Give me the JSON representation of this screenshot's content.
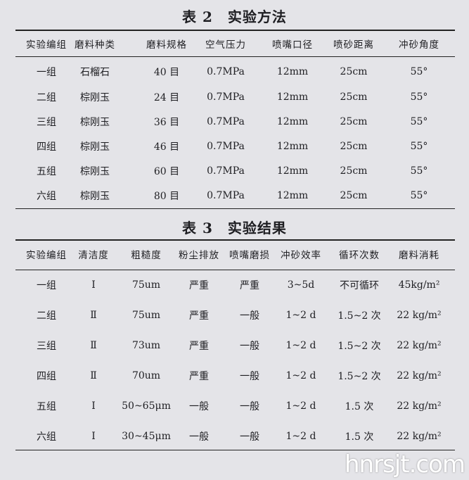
{
  "table2": {
    "title": "表 2　实验方法",
    "headers": [
      "实验编组",
      "磨料种类",
      "磨料规格",
      "空气压力",
      "喷嘴口径",
      "喷砂距离",
      "冲砂角度"
    ],
    "rows": [
      [
        "一组",
        "石榴石",
        "40 目",
        "0.7MPa",
        "12mm",
        "25cm",
        "55°"
      ],
      [
        "二组",
        "棕刚玉",
        "24 目",
        "0.7MPa",
        "12mm",
        "25cm",
        "55°"
      ],
      [
        "三组",
        "棕刚玉",
        "36 目",
        "0.7MPa",
        "12mm",
        "25cm",
        "55°"
      ],
      [
        "四组",
        "棕刚玉",
        "46 目",
        "0.7MPa",
        "12mm",
        "25cm",
        "55°"
      ],
      [
        "五组",
        "棕刚玉",
        "60 目",
        "0.7MPa",
        "12mm",
        "25cm",
        "55°"
      ],
      [
        "六组",
        "棕刚玉",
        "80 目",
        "0.7MPa",
        "12mm",
        "25cm",
        "55°"
      ]
    ]
  },
  "table3": {
    "title": "表 3　实验结果",
    "headers": [
      "实验编组",
      "清洁度",
      "粗糙度",
      "粉尘排放",
      "喷嘴磨损",
      "冲砂效率",
      "循环次数",
      "磨料消耗"
    ],
    "rows": [
      [
        "一组",
        "Ⅰ",
        "75um",
        "严重",
        "严重",
        "3~5d",
        "不可循环",
        "45kg/m²"
      ],
      [
        "二组",
        "Ⅱ",
        "75um",
        "严重",
        "一般",
        "1~2 d",
        "1.5~2 次",
        "22 kg/m²"
      ],
      [
        "三组",
        "Ⅱ",
        "73um",
        "严重",
        "一般",
        "1~2 d",
        "1.5~2 次",
        "22 kg/m²"
      ],
      [
        "四组",
        "Ⅱ",
        "70um",
        "严重",
        "一般",
        "1~2 d",
        "1.5~2 次",
        "22 kg/m²"
      ],
      [
        "五组",
        "Ⅰ",
        "50~65μm",
        "一般",
        "一般",
        "1~2 d",
        "1.5 次",
        "22 kg/m²"
      ],
      [
        "六组",
        "Ⅰ",
        "30~45μm",
        "一般",
        "一般",
        "1~2 d",
        "1.5 次",
        "22 kg/m²"
      ]
    ]
  },
  "watermark": "hnrsjt.com"
}
